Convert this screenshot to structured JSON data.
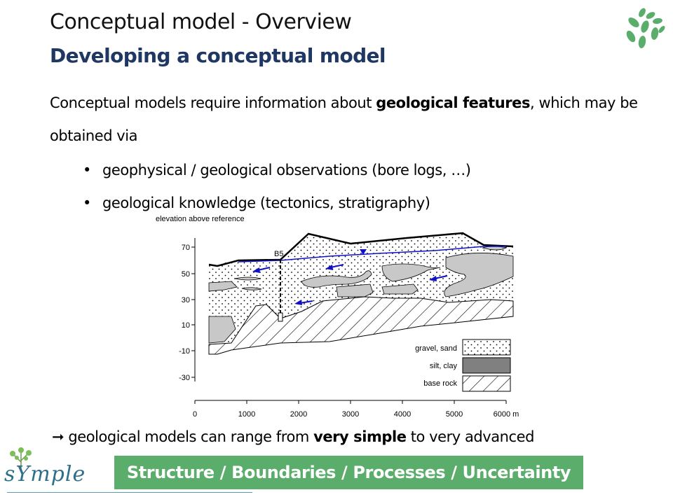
{
  "slide": {
    "title": "Conceptual model - Overview",
    "subtitle": "Developing a conceptual model",
    "intro_pre": "Conceptual models require information about ",
    "intro_bold": "geological features",
    "intro_post": ", which may be obtained via",
    "bullets": [
      "geophysical / geological observations (bore logs, …)",
      "geological knowledge (tectonics, stratigraphy)"
    ],
    "conclusion_pre": "geological models can range from ",
    "conclusion_bold": "very simple",
    "conclusion_post": " to very advanced",
    "banner": "Structure / Boundaries / Processes / Uncertainty",
    "logo_text": "sYmple",
    "colors": {
      "subtitle": "#1f3763",
      "banner": "#5aad6a",
      "groundwater": "#1010c8"
    },
    "icons": [
      "leaves-icon",
      "tree-icon",
      "arrow-right-icon"
    ]
  },
  "figure": {
    "y_axis_label": "elevation above reference",
    "y_ticks": [
      "70",
      "50",
      "30",
      "10",
      "-10",
      "-30"
    ],
    "x_ticks": [
      "0",
      "1000",
      "2000",
      "3000",
      "4000",
      "5000",
      "6000 m"
    ],
    "borehole_label": "B5",
    "legend": [
      "gravel, sand",
      "silt, clay",
      "base rock"
    ]
  }
}
